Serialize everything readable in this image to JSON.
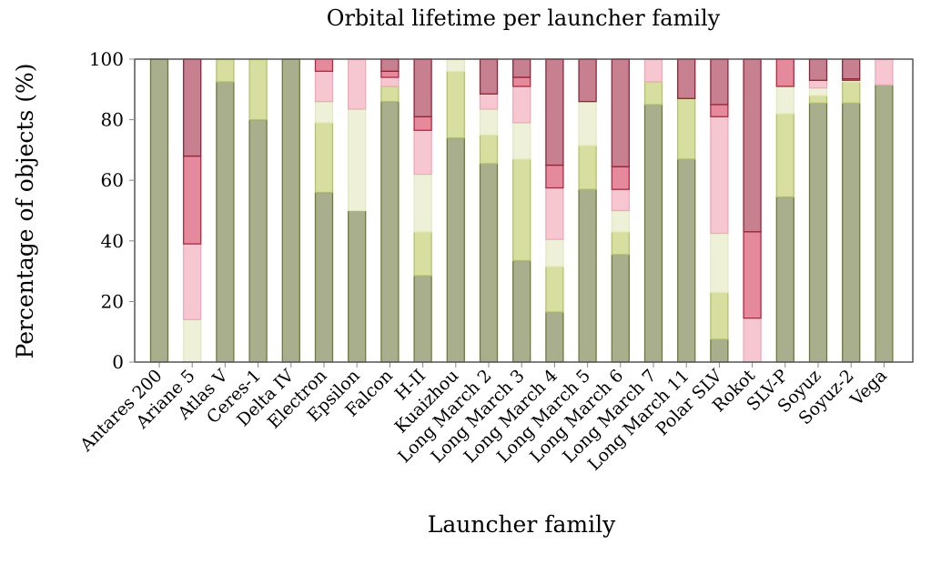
{
  "chart_data": {
    "type": "bar",
    "stacked": true,
    "title": "Orbital lifetime per launcher family",
    "xlabel": "Launcher family",
    "ylabel": "Percentage of objects (%)",
    "ylim": [
      0,
      100
    ],
    "yticks": [
      "0",
      "20",
      "40",
      "60",
      "80",
      "100"
    ],
    "grid": false,
    "categories": [
      "Antares 200",
      "Ariane 5",
      "Atlas V",
      "Ceres-1",
      "Delta IV",
      "Electron",
      "Epsilon",
      "Falcon",
      "H-II",
      "Kuaizhou",
      "Long March 2",
      "Long March 3",
      "Long March 4",
      "Long March 5",
      "Long March 6",
      "Long March 7",
      "Long March 11",
      "Polar SLV",
      "Rokot",
      "SLV-P",
      "Soyuz",
      "Soyuz-2",
      "Vega"
    ],
    "series": [
      {
        "color": "#a9ae8c",
        "stroke": "#6f7a3a",
        "values": [
          100,
          0,
          92.5,
          80,
          100,
          56,
          50,
          86,
          28.5,
          74,
          65.5,
          33.5,
          16.5,
          57,
          35.5,
          85,
          67,
          7.5,
          0,
          54.5,
          85.5,
          85.5,
          91.5
        ]
      },
      {
        "color": "#d7de9f",
        "stroke": "#b5c26a",
        "values": [
          0,
          0,
          7.5,
          20,
          0,
          23,
          0,
          5,
          14.5,
          22,
          9.5,
          33.5,
          15,
          14.5,
          7.5,
          7.5,
          20,
          15.5,
          0,
          27.5,
          2.5,
          7,
          0
        ]
      },
      {
        "color": "#eef1d8",
        "stroke": "#e3e8c4",
        "values": [
          0,
          14,
          0,
          0,
          0,
          7,
          33.5,
          0,
          19,
          4,
          8.5,
          12,
          9,
          14.5,
          7,
          0,
          0,
          19.5,
          0,
          9,
          2.5,
          0.5,
          0
        ]
      },
      {
        "color": "#f7c7d1",
        "stroke": "#efa9b8",
        "values": [
          0,
          25,
          0,
          0,
          0,
          10,
          16.5,
          3,
          14.5,
          0,
          5,
          12,
          17,
          0,
          7,
          7.5,
          0,
          38.5,
          14.5,
          0,
          2.5,
          0,
          8.5
        ]
      },
      {
        "color": "#e48a9c",
        "stroke": "#b3283f",
        "values": [
          0,
          29,
          0,
          0,
          0,
          4,
          0,
          2,
          4.5,
          0,
          0,
          3,
          7.5,
          0,
          7.5,
          0,
          0,
          4,
          28.5,
          9,
          0,
          0.5,
          0
        ]
      },
      {
        "color": "#c6808f",
        "stroke": "#8e2538",
        "values": [
          0,
          32,
          0,
          0,
          0,
          0,
          0,
          4,
          19,
          0,
          11.5,
          6,
          35,
          14,
          35.5,
          0,
          13,
          15,
          57,
          0,
          7,
          6.5,
          0
        ]
      }
    ]
  }
}
